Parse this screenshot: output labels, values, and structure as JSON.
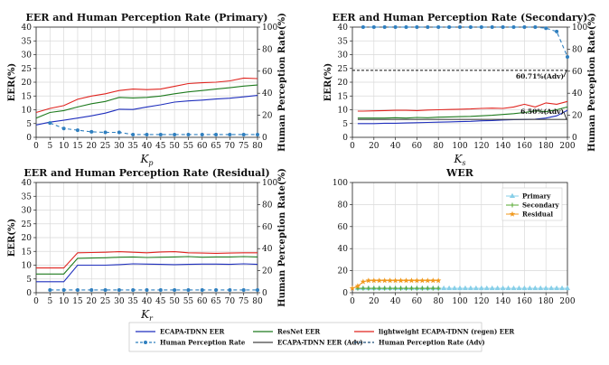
{
  "colors": {
    "ecapa": "#1f2fbd",
    "resnet": "#1e7b1e",
    "lightweight": "#e0241f",
    "perception": "#2f7fbf",
    "adv": "#444444",
    "wer_primary": "#87cfe8",
    "wer_secondary": "#55a832",
    "wer_residual": "#f0981c"
  },
  "legend": {
    "ecapa": "ECAPA-TDNN EER",
    "resnet": "ResNet EER",
    "lightweight": "lightweight ECAPA-TDNN (regen) EER",
    "perception": "Human Perception Rate",
    "ecapa_adv": "ECAPA-TDNN EER (Adv)",
    "perception_adv": "Human Perception Rate (Adv)"
  },
  "chart_data": [
    {
      "id": "primary",
      "type": "line",
      "title": "EER and Human Perception Rate (Primary)",
      "xlabel_main": "K",
      "xlabel_sub": "p",
      "ylabel": "EER(%)",
      "ylabel_right": "Human Perception Rate(%)",
      "xlim": [
        0,
        80
      ],
      "ylim": [
        0,
        40
      ],
      "ylim_right": [
        0,
        100
      ],
      "xticks": [
        0,
        5,
        10,
        15,
        20,
        25,
        30,
        35,
        40,
        45,
        50,
        55,
        60,
        65,
        70,
        75,
        80
      ],
      "yticks": [
        0,
        5,
        10,
        15,
        20,
        25,
        30,
        35,
        40
      ],
      "yticks_right": [
        0,
        20,
        40,
        60,
        80,
        100
      ],
      "x": [
        0,
        5,
        10,
        15,
        20,
        25,
        30,
        35,
        40,
        45,
        50,
        55,
        60,
        65,
        70,
        75,
        80
      ],
      "series": [
        {
          "key": "ecapa",
          "values": [
            4.5,
            5.5,
            6.2,
            7.0,
            7.8,
            8.8,
            10.2,
            10.1,
            11.0,
            11.8,
            12.8,
            13.2,
            13.5,
            13.9,
            14.2,
            14.7,
            15.2
          ]
        },
        {
          "key": "resnet",
          "values": [
            7.0,
            9.0,
            9.7,
            11.0,
            12.2,
            13.0,
            14.5,
            14.3,
            14.5,
            15.0,
            15.8,
            16.5,
            17.0,
            17.5,
            18.0,
            18.6,
            19.0
          ]
        },
        {
          "key": "lightweight",
          "values": [
            9.0,
            10.5,
            11.5,
            13.8,
            15.0,
            15.8,
            17.0,
            17.5,
            17.3,
            17.5,
            18.5,
            19.5,
            19.8,
            20.0,
            20.5,
            21.5,
            21.3
          ]
        }
      ],
      "perception": {
        "x": [
          5,
          10,
          15,
          20,
          25,
          30,
          35,
          40,
          45,
          50,
          55,
          60,
          65,
          70,
          75,
          80
        ],
        "values": [
          13,
          8,
          6.5,
          5,
          4.5,
          4.5,
          2.5,
          2.5,
          2.5,
          2.5,
          2.5,
          2.5,
          2.5,
          2.5,
          2.5,
          2.5
        ]
      }
    },
    {
      "id": "secondary",
      "type": "line",
      "title": "EER and Human Perception Rate (Secondary)",
      "xlabel_main": "K",
      "xlabel_sub": "s",
      "ylabel": "EER(%)",
      "ylabel_right": "Human Perception Rate(%)",
      "xlim": [
        0,
        200
      ],
      "ylim": [
        0,
        40
      ],
      "ylim_right": [
        0,
        100
      ],
      "xticks": [
        0,
        20,
        40,
        60,
        80,
        100,
        120,
        140,
        160,
        180,
        200
      ],
      "yticks": [
        0,
        5,
        10,
        15,
        20,
        25,
        30,
        35,
        40
      ],
      "yticks_right": [
        0,
        20,
        40,
        60,
        80,
        100
      ],
      "x": [
        5,
        10,
        20,
        30,
        40,
        50,
        60,
        70,
        80,
        90,
        100,
        110,
        120,
        130,
        140,
        150,
        160,
        170,
        180,
        190,
        200
      ],
      "series": [
        {
          "key": "ecapa",
          "values": [
            5.0,
            5.0,
            5.0,
            5.1,
            5.1,
            5.2,
            5.3,
            5.4,
            5.5,
            5.6,
            5.7,
            5.8,
            6.0,
            6.1,
            6.3,
            6.4,
            6.5,
            6.6,
            7.0,
            7.8,
            9.8
          ]
        },
        {
          "key": "resnet",
          "values": [
            7.0,
            7.0,
            7.0,
            7.0,
            7.1,
            7.0,
            7.2,
            7.1,
            7.3,
            7.4,
            7.5,
            7.6,
            7.8,
            8.0,
            8.3,
            8.6,
            9.0,
            9.6,
            9.3,
            10.0,
            11.0
          ]
        },
        {
          "key": "lightweight",
          "values": [
            9.5,
            9.5,
            9.6,
            9.7,
            9.8,
            9.8,
            9.7,
            9.9,
            10.0,
            10.1,
            10.2,
            10.3,
            10.5,
            10.6,
            10.5,
            11.0,
            12.0,
            11.0,
            12.5,
            12.0,
            13.0
          ]
        },
        {
          "key": "ecapa_adv",
          "values": [
            6.5,
            6.5,
            6.5,
            6.5,
            6.5,
            6.5,
            6.5,
            6.5,
            6.5,
            6.5,
            6.5,
            6.5,
            6.5,
            6.5,
            6.5,
            6.5,
            6.5,
            6.5,
            6.5,
            6.5,
            6.5
          ]
        }
      ],
      "perception": {
        "x": [
          10,
          20,
          30,
          40,
          50,
          60,
          70,
          80,
          90,
          100,
          110,
          120,
          130,
          140,
          150,
          160,
          170,
          180,
          190,
          200
        ],
        "values": [
          100,
          100,
          100,
          100,
          100,
          100,
          100,
          100,
          100,
          100,
          100,
          100,
          100,
          100,
          100,
          100,
          100,
          99,
          96,
          73
        ]
      },
      "perception_adv_value": 60.71,
      "annotations": [
        {
          "text": "60.71%(Adv)",
          "axis": "right",
          "x": 200,
          "y": 60.71
        },
        {
          "text": "6.50%(Adv)",
          "axis": "left",
          "x": 200,
          "y": 6.5
        }
      ]
    },
    {
      "id": "residual",
      "type": "line",
      "title": "EER and Human Perception Rate (Residual)",
      "xlabel_main": "K",
      "xlabel_sub": "r",
      "ylabel": "EER(%)",
      "ylabel_right": "Human Perception Rate(%)",
      "xlim": [
        0,
        80
      ],
      "ylim": [
        0,
        40
      ],
      "ylim_right": [
        0,
        100
      ],
      "xticks": [
        0,
        5,
        10,
        15,
        20,
        25,
        30,
        35,
        40,
        45,
        50,
        55,
        60,
        65,
        70,
        75,
        80
      ],
      "yticks": [
        0,
        5,
        10,
        15,
        20,
        25,
        30,
        35,
        40
      ],
      "yticks_right": [
        0,
        20,
        40,
        60,
        80,
        100
      ],
      "x": [
        0,
        5,
        10,
        15,
        20,
        25,
        30,
        35,
        40,
        45,
        50,
        55,
        60,
        65,
        70,
        75,
        80
      ],
      "series": [
        {
          "key": "ecapa",
          "values": [
            4.0,
            4.0,
            4.0,
            10.0,
            10.0,
            10.0,
            10.2,
            10.5,
            10.4,
            10.3,
            10.2,
            10.3,
            10.4,
            10.4,
            10.3,
            10.5,
            10.3
          ]
        },
        {
          "key": "resnet",
          "values": [
            6.8,
            6.8,
            6.8,
            12.5,
            12.6,
            12.7,
            12.9,
            13.0,
            12.8,
            12.9,
            13.0,
            13.1,
            12.9,
            13.0,
            13.0,
            13.1,
            13.0
          ]
        },
        {
          "key": "lightweight",
          "values": [
            9.0,
            9.0,
            9.0,
            14.5,
            14.6,
            14.7,
            14.9,
            14.7,
            14.5,
            14.8,
            14.9,
            14.5,
            14.4,
            14.3,
            14.4,
            14.5,
            14.5
          ]
        }
      ],
      "perception": {
        "x": [
          5,
          10,
          15,
          20,
          25,
          30,
          35,
          40,
          45,
          50,
          55,
          60,
          65,
          70,
          75,
          80
        ],
        "values": [
          2.5,
          2.5,
          2.5,
          2.5,
          2.5,
          2.5,
          2.5,
          2.5,
          2.5,
          2.5,
          2.5,
          2.5,
          2.5,
          2.5,
          2.5,
          2.5
        ]
      }
    },
    {
      "id": "wer",
      "type": "line",
      "title": "WER",
      "xlim": [
        0,
        200
      ],
      "ylim": [
        0,
        100
      ],
      "xticks": [
        0,
        20,
        40,
        60,
        80,
        100,
        120,
        140,
        160,
        180,
        200
      ],
      "yticks": [
        0,
        20,
        40,
        60,
        80,
        100
      ],
      "legend_labels": [
        "Primary",
        "Secondary",
        "Residual"
      ],
      "series": [
        {
          "name": "Primary",
          "key": "wer_primary",
          "marker": "triangle",
          "x": [
            5,
            10,
            15,
            20,
            25,
            30,
            35,
            40,
            45,
            50,
            55,
            60,
            65,
            70,
            75,
            80,
            85,
            90,
            95,
            100,
            105,
            110,
            115,
            120,
            125,
            130,
            135,
            140,
            145,
            150,
            155,
            160,
            165,
            170,
            175,
            180,
            185,
            190,
            195,
            200
          ],
          "values": [
            4,
            4,
            4,
            4,
            4,
            4,
            4,
            4,
            4,
            4,
            4,
            4,
            4,
            4,
            4,
            4,
            4,
            4,
            4,
            4,
            4,
            4,
            4,
            4,
            4,
            4,
            4,
            4,
            4,
            4,
            4,
            4,
            4,
            4,
            4,
            4,
            4,
            4,
            4,
            4
          ]
        },
        {
          "name": "Secondary",
          "key": "wer_secondary",
          "marker": "plus",
          "x": [
            5,
            10,
            15,
            20,
            25,
            30,
            35,
            40,
            45,
            50,
            55,
            60,
            65,
            70,
            75,
            80
          ],
          "values": [
            4,
            4,
            4,
            4,
            4,
            4,
            4,
            4,
            4,
            4,
            4,
            4,
            4,
            4,
            4,
            4
          ]
        },
        {
          "name": "Residual",
          "key": "wer_residual",
          "marker": "star",
          "x": [
            0,
            5,
            10,
            15,
            20,
            25,
            30,
            35,
            40,
            45,
            50,
            55,
            60,
            65,
            70,
            75,
            80
          ],
          "values": [
            4,
            6,
            10,
            11,
            11,
            11,
            11,
            11,
            11,
            11,
            11,
            11,
            11,
            11,
            11,
            11,
            11
          ]
        }
      ]
    }
  ]
}
